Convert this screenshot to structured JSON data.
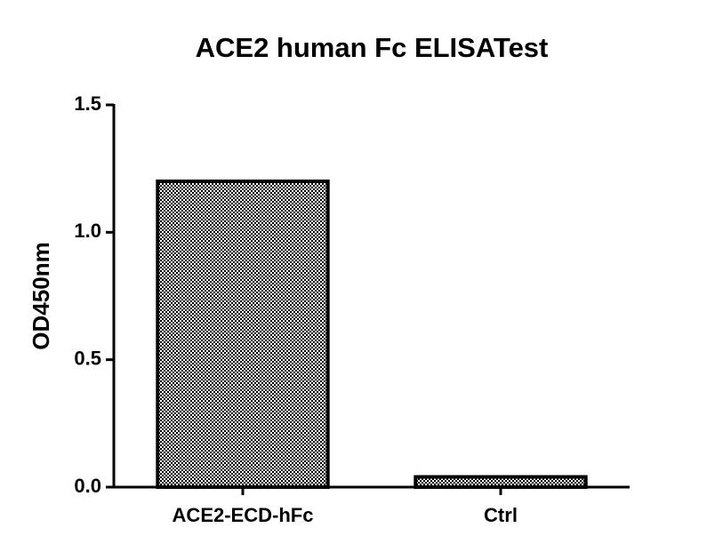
{
  "chart_data": {
    "type": "bar",
    "title": "ACE2 human Fc ELISATest",
    "y_label": "OD450nm",
    "categories": [
      "ACE2-ECD-hFc",
      "Ctrl"
    ],
    "values": [
      1.2,
      0.04
    ],
    "color": "#000000",
    "ylim": [
      0,
      1.5
    ],
    "yticks": [
      {
        "value": 0,
        "label": "0.0"
      },
      0.5,
      {
        "value": 1,
        "label": "1.0"
      },
      1.5
    ],
    "grid": false
  }
}
